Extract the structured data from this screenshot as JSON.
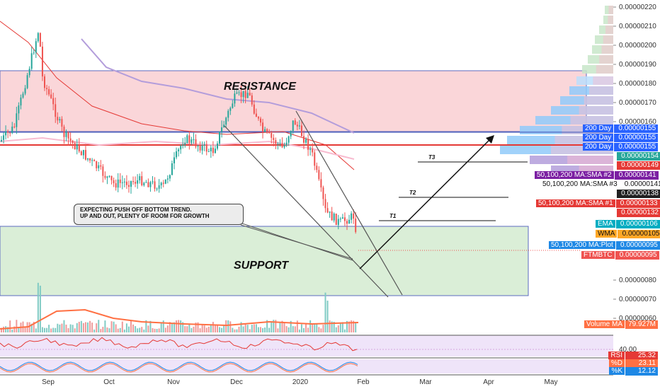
{
  "chart_data": {
    "type": "candlestick",
    "symbol": "FTMBTC",
    "y_axis_ticks": [
      "0.00000220",
      "0.00000210",
      "0.00000200",
      "0.00000190",
      "0.00000180",
      "0.00000170",
      "0.00000160",
      "0.00000080",
      "0.00000070",
      "0.00000060"
    ],
    "x_axis_ticks": [
      "Sep",
      "Oct",
      "Nov",
      "Dec",
      "2020",
      "Feb",
      "Mar",
      "Apr",
      "May"
    ],
    "ylim": [
      5.8e-07,
      2.23e-06
    ],
    "zones": {
      "resistance": {
        "label": "RESISTANCE",
        "from": 1.55e-06,
        "to": 1.87e-06,
        "color": "#f8c8cc"
      },
      "support": {
        "label": "SUPPORT",
        "from": 7.2e-07,
        "to": 1.06e-06,
        "color": "#cfe8cc"
      }
    },
    "horizontal_levels": [
      {
        "name": "red-line",
        "value": 1.51e-06,
        "color": "#e53935"
      },
      {
        "name": "blue-line",
        "value": 1.55e-06,
        "color": "#3f51b5"
      }
    ],
    "targets": [
      {
        "label": "T1",
        "value": 1.19e-06
      },
      {
        "label": "T2",
        "value": 1.35e-06
      },
      {
        "label": "T3",
        "value": 1.5e-06
      }
    ],
    "annotation": "EXPECTING PUSH OFF BOTTOM TREND.\nUP AND OUT, PLENTY OF ROOM FOR GROWTH",
    "price_candles_approx": [
      {
        "x": 0.02,
        "o": 1.58,
        "h": 1.66,
        "l": 1.45,
        "c": 1.49
      },
      {
        "x": 0.05,
        "o": 1.52,
        "h": 2.2,
        "l": 1.48,
        "c": 1.78
      },
      {
        "x": 0.07,
        "o": 1.78,
        "h": 1.86,
        "l": 1.6,
        "c": 1.64
      },
      {
        "x": 0.1,
        "o": 1.63,
        "h": 1.72,
        "l": 1.5,
        "c": 1.55
      },
      {
        "x": 0.13,
        "o": 1.52,
        "h": 1.55,
        "l": 1.25,
        "c": 1.3
      },
      {
        "x": 0.16,
        "o": 1.3,
        "h": 1.45,
        "l": 1.28,
        "c": 1.42
      },
      {
        "x": 0.19,
        "o": 1.42,
        "h": 1.55,
        "l": 1.35,
        "c": 1.5
      },
      {
        "x": 0.22,
        "o": 1.48,
        "h": 1.52,
        "l": 1.32,
        "c": 1.35
      },
      {
        "x": 0.25,
        "o": 1.35,
        "h": 1.4,
        "l": 1.18,
        "c": 1.24
      },
      {
        "x": 0.28,
        "o": 1.26,
        "h": 1.45,
        "l": 1.24,
        "c": 1.42
      },
      {
        "x": 0.31,
        "o": 1.42,
        "h": 1.6,
        "l": 1.38,
        "c": 1.55
      },
      {
        "x": 0.34,
        "o": 1.55,
        "h": 1.6,
        "l": 1.4,
        "c": 1.45
      },
      {
        "x": 0.37,
        "o": 1.45,
        "h": 1.84,
        "l": 1.43,
        "c": 1.78
      },
      {
        "x": 0.4,
        "o": 1.78,
        "h": 1.85,
        "l": 1.55,
        "c": 1.6
      },
      {
        "x": 0.43,
        "o": 1.6,
        "h": 1.68,
        "l": 1.45,
        "c": 1.52
      },
      {
        "x": 0.46,
        "o": 1.5,
        "h": 1.58,
        "l": 1.4,
        "c": 1.55
      },
      {
        "x": 0.49,
        "o": 1.55,
        "h": 1.62,
        "l": 1.38,
        "c": 1.42
      },
      {
        "x": 0.52,
        "o": 1.42,
        "h": 1.45,
        "l": 1.22,
        "c": 1.28
      },
      {
        "x": 0.55,
        "o": 1.28,
        "h": 1.32,
        "l": 1.1,
        "c": 1.15
      },
      {
        "x": 0.58,
        "o": 1.15,
        "h": 1.2,
        "l": 1.05,
        "c": 1.12
      },
      {
        "x": 0.6,
        "o": 1.12,
        "h": 1.16,
        "l": 0.95,
        "c": 0.97
      }
    ],
    "indicators": [
      {
        "name": "EMA",
        "value": "0.00000106"
      },
      {
        "name": "WMA",
        "value": "0.00000105"
      },
      {
        "name": "50,100,200 MA:Plot",
        "value": "0.00000095"
      },
      {
        "name": "FTMBTC",
        "value": "0.00000095"
      },
      {
        "name": "50,100,200 MA:SMA #2",
        "value": "0.00000141"
      },
      {
        "name": "50,100,200 MA:SMA #3",
        "value": "0.00000141"
      },
      {
        "name": "50,100,200 MA:SMA #1",
        "value": "0.00000133"
      },
      {
        "name": "200 Day",
        "value": "0.00000155"
      },
      {
        "name": "Volume MA",
        "value": "79.927M"
      },
      {
        "name": "RSI",
        "value": "25.32"
      },
      {
        "name": "%D",
        "value": "23.11"
      },
      {
        "name": "%K",
        "value": "12.12"
      }
    ],
    "oscillator_tick": "40.00"
  },
  "price_tags": [
    {
      "label": "200 Day",
      "value": "0.00000155",
      "color": "#2962ff",
      "text": "#ffffff"
    },
    {
      "label": "200 Day",
      "value": "0.00000155",
      "color": "#2962ff",
      "text": "#ffffff"
    },
    {
      "label": "200 Day",
      "value": "0.00000155",
      "color": "#2962ff",
      "text": "#ffffff"
    },
    {
      "label": "",
      "value": "0.00000154",
      "color": "#26a69a",
      "text": "#ffffff"
    },
    {
      "label": "",
      "value": "0.00000149",
      "color": "#e53935",
      "text": "#ffffff"
    },
    {
      "label": "50,100,200 MA:SMA #2",
      "value": "0.00000141",
      "color": "#7b1fa2",
      "text": "#ffffff"
    },
    {
      "label": "50,100,200 MA:SMA #3",
      "value": "0.00000141",
      "color": "#ffffff",
      "text": "#111111"
    },
    {
      "label": "",
      "value": "0.00000138",
      "color": "#212121",
      "text": "#ffffff"
    },
    {
      "label": "50,100,200 MA:SMA #1",
      "value": "0.00000133",
      "color": "#e53935",
      "text": "#ffffff"
    },
    {
      "label": "",
      "value": "0.00000132",
      "color": "#e53935",
      "text": "#ffffff"
    },
    {
      "label": "EMA",
      "value": "0.00000106",
      "color": "#00acc1",
      "text": "#ffffff"
    },
    {
      "label": "WMA",
      "value": "0.00000105",
      "color": "#ffa726",
      "text": "#111111"
    },
    {
      "label": "50,100,200 MA:Plot",
      "value": "0.00000095",
      "color": "#1e88e5",
      "text": "#ffffff"
    },
    {
      "label": "FTMBTC",
      "value": "0.00000095",
      "color": "#ef5350",
      "text": "#ffffff"
    }
  ],
  "lower_tags": [
    {
      "label": "Volume MA",
      "value": "79.927M",
      "color": "#ff7043",
      "text": "#ffffff"
    },
    {
      "label": "RSI",
      "value": "25.32",
      "color": "#e53935",
      "text": "#ffffff"
    },
    {
      "label": "%D",
      "value": "23.11",
      "color": "#ff7043",
      "text": "#ffffff"
    },
    {
      "label": "%K",
      "value": "12.12",
      "color": "#1e88e5",
      "text": "#ffffff"
    }
  ],
  "colors": {
    "up": "#26a69a",
    "down": "#ef5350",
    "resistance_fill": "#f8c8cc",
    "support_fill": "#d4ebd0",
    "rsi_bg": "#efe4f9"
  }
}
